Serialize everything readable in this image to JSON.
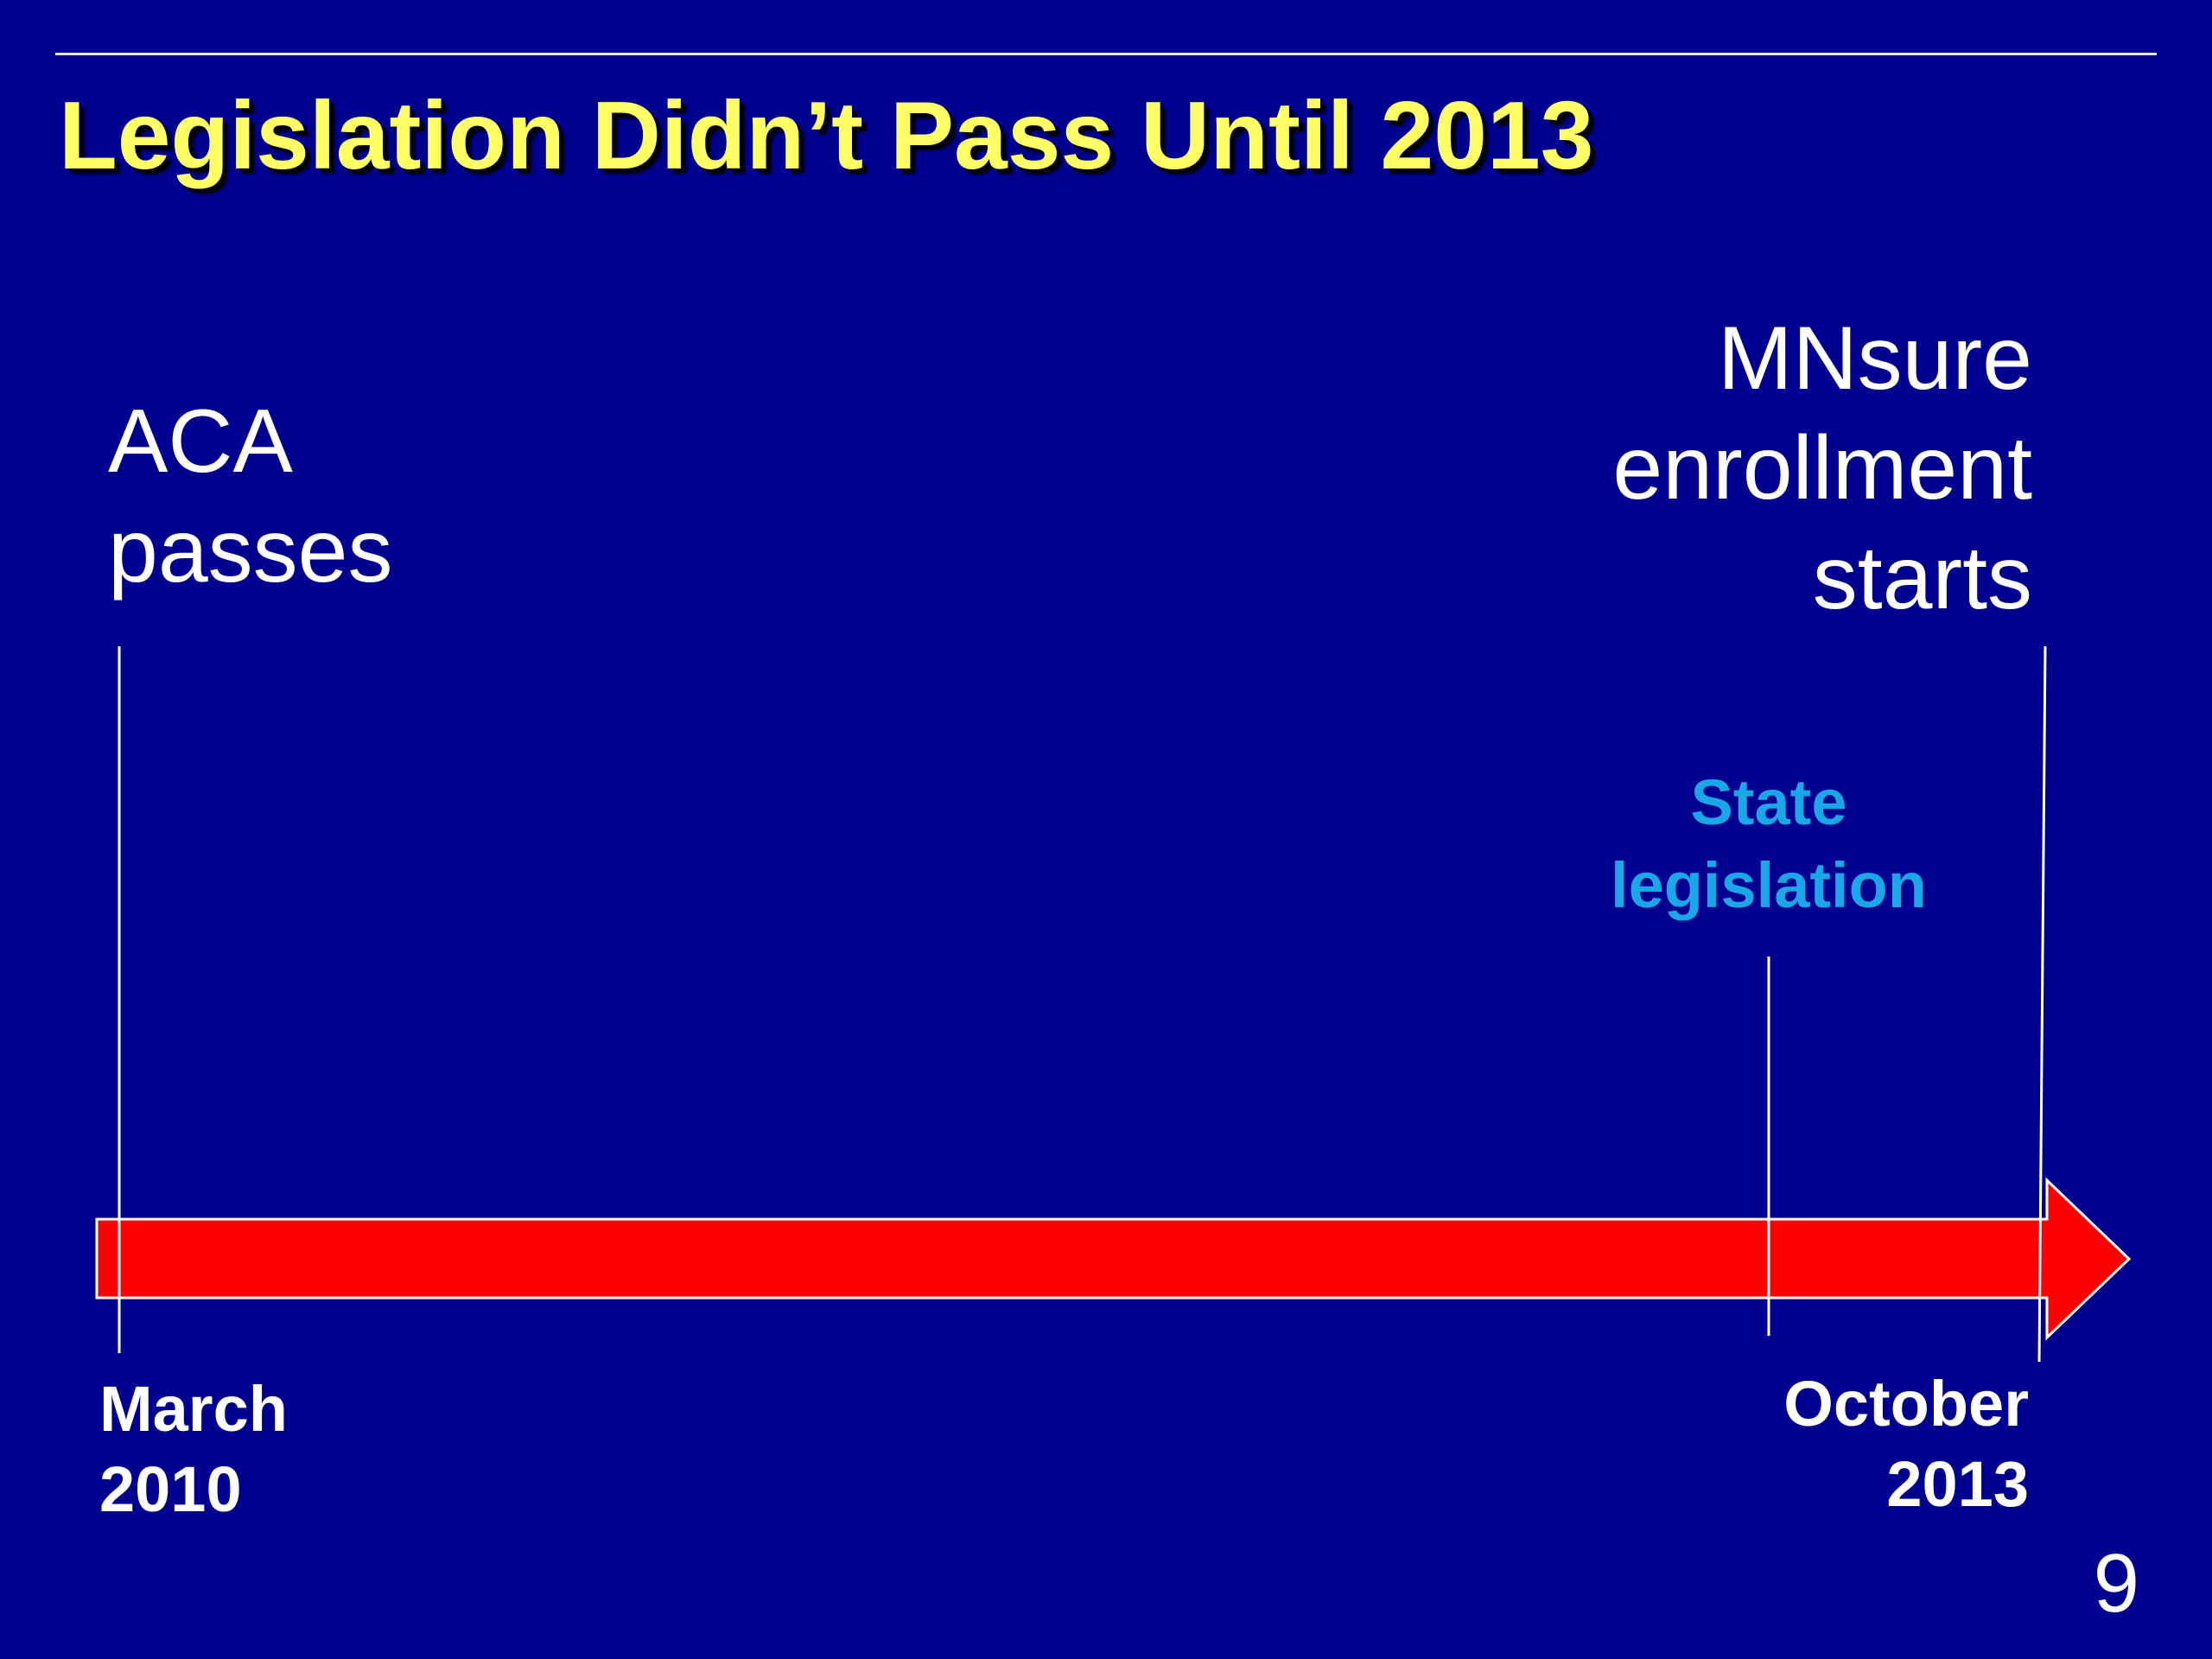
{
  "slide": {
    "title": "Legislation Didn’t Pass Until 2013",
    "page_number": "9"
  },
  "events": {
    "aca": {
      "lines": [
        "ACA",
        "passes"
      ]
    },
    "mnsure": {
      "lines": [
        "MNsure",
        "enrollment",
        "starts"
      ]
    },
    "state_legislation": {
      "lines": [
        "State",
        "legislation"
      ]
    }
  },
  "dates": {
    "start": {
      "lines": [
        "March",
        "2010"
      ]
    },
    "end": {
      "lines": [
        "October",
        "2013"
      ]
    }
  },
  "colors": {
    "background": "#000090",
    "title": "#ffff66",
    "arrow": "#ff0000",
    "state_legislation": "#1aa7e8",
    "text": "#ffffff"
  }
}
